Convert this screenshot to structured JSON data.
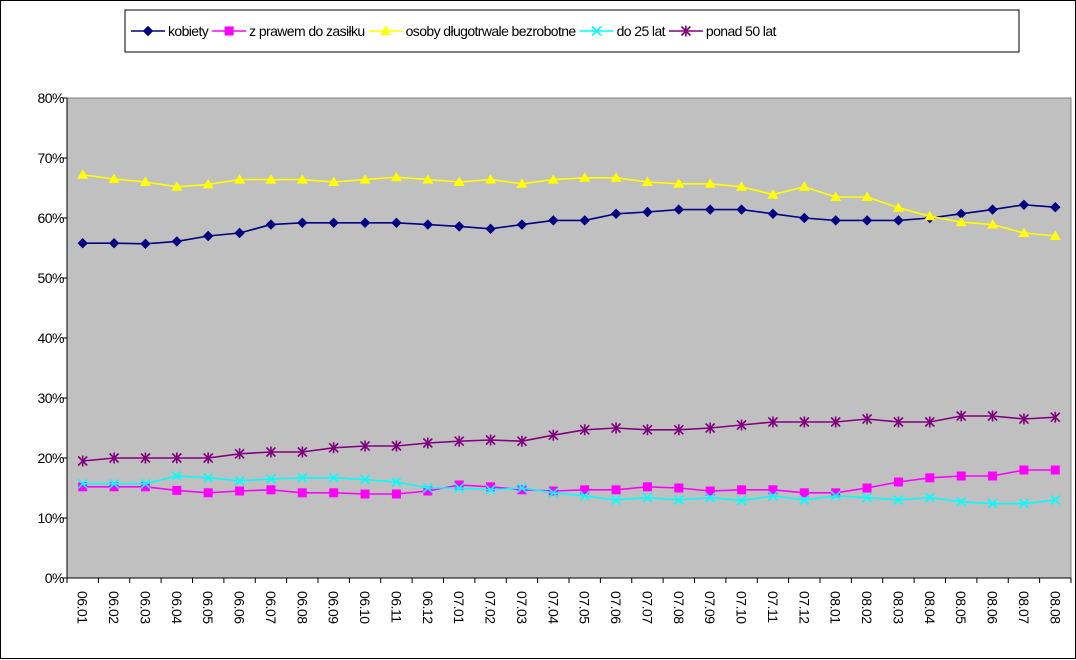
{
  "chart_data": {
    "type": "line",
    "title": "",
    "xlabel": "",
    "ylabel": "",
    "ylim": [
      0,
      0.8
    ],
    "yticks": [
      "0%",
      "10%",
      "20%",
      "30%",
      "40%",
      "50%",
      "60%",
      "70%",
      "80%"
    ],
    "grid": false,
    "plot_background": "#C0C0C0",
    "legend_position": "top",
    "categories": [
      "06.01",
      "06.02",
      "06.03",
      "06.04",
      "06.05",
      "06.06",
      "06.07",
      "06.08",
      "06.09",
      "06.10",
      "06.11",
      "06.12",
      "07.01",
      "07.02",
      "07.03",
      "07.04",
      "07.05",
      "07.06",
      "07.07",
      "07.08",
      "07.09",
      "07.10",
      "07.11",
      "07.12",
      "08.01",
      "08.02",
      "08.03",
      "08.04",
      "08.05",
      "08.06",
      "08.07",
      "08.08"
    ],
    "series": [
      {
        "name": "kobiety",
        "color": "#000080",
        "marker": "diamond",
        "values": [
          0.558,
          0.558,
          0.557,
          0.561,
          0.57,
          0.575,
          0.589,
          0.592,
          0.592,
          0.592,
          0.592,
          0.589,
          0.586,
          0.582,
          0.589,
          0.596,
          0.596,
          0.607,
          0.61,
          0.614,
          0.614,
          0.614,
          0.607,
          0.6,
          0.596,
          0.596,
          0.596,
          0.6,
          0.607,
          0.614,
          0.622,
          0.618
        ]
      },
      {
        "name": "z prawem do zasiłku",
        "color": "#FF00FF",
        "marker": "square",
        "values": [
          0.152,
          0.152,
          0.152,
          0.146,
          0.142,
          0.145,
          0.147,
          0.142,
          0.142,
          0.14,
          0.14,
          0.145,
          0.155,
          0.152,
          0.147,
          0.145,
          0.147,
          0.147,
          0.152,
          0.15,
          0.145,
          0.147,
          0.147,
          0.142,
          0.142,
          0.15,
          0.16,
          0.167,
          0.17,
          0.17,
          0.18,
          0.18
        ]
      },
      {
        "name": "osoby długotrwale bezrobotne",
        "color": "#FFFF00",
        "marker": "triangle",
        "values": [
          0.672,
          0.665,
          0.66,
          0.652,
          0.656,
          0.664,
          0.664,
          0.664,
          0.66,
          0.664,
          0.668,
          0.664,
          0.66,
          0.664,
          0.657,
          0.664,
          0.667,
          0.667,
          0.66,
          0.657,
          0.657,
          0.652,
          0.639,
          0.652,
          0.635,
          0.635,
          0.617,
          0.603,
          0.593,
          0.589,
          0.575,
          0.57
        ]
      },
      {
        "name": "do 25 lat",
        "color": "#00FFFF",
        "marker": "x",
        "values": [
          0.157,
          0.157,
          0.157,
          0.17,
          0.167,
          0.162,
          0.165,
          0.167,
          0.167,
          0.164,
          0.16,
          0.15,
          0.15,
          0.147,
          0.15,
          0.142,
          0.137,
          0.13,
          0.134,
          0.13,
          0.134,
          0.129,
          0.137,
          0.13,
          0.137,
          0.134,
          0.13,
          0.134,
          0.127,
          0.124,
          0.124,
          0.13
        ]
      },
      {
        "name": "ponad 50 lat",
        "color": "#800080",
        "marker": "star",
        "values": [
          0.195,
          0.2,
          0.2,
          0.2,
          0.2,
          0.207,
          0.21,
          0.21,
          0.217,
          0.22,
          0.22,
          0.225,
          0.228,
          0.23,
          0.228,
          0.238,
          0.247,
          0.25,
          0.247,
          0.247,
          0.25,
          0.255,
          0.26,
          0.26,
          0.26,
          0.265,
          0.26,
          0.26,
          0.27,
          0.27,
          0.265,
          0.268
        ]
      }
    ]
  }
}
